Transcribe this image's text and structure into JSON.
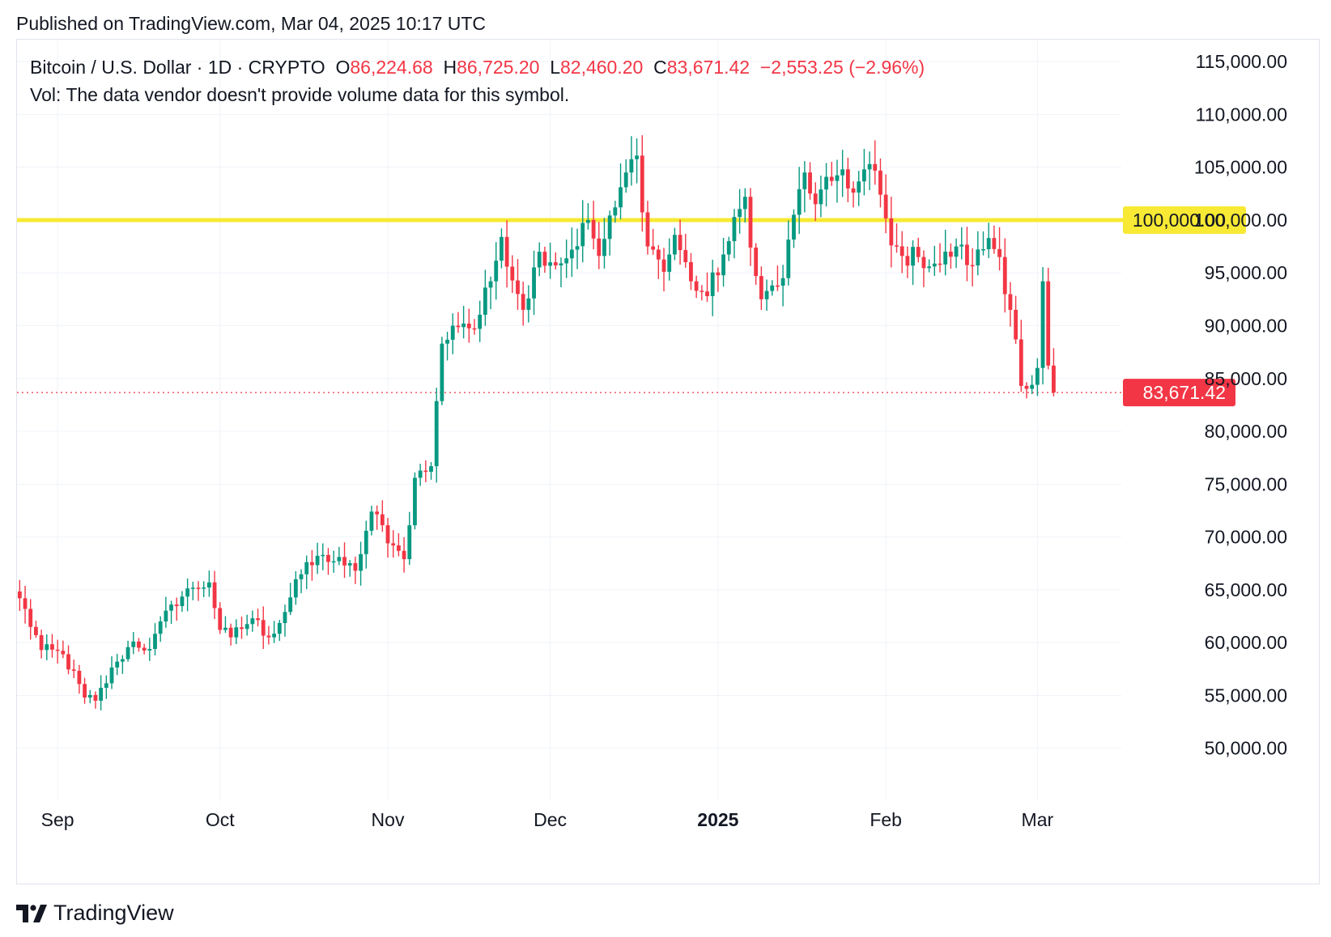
{
  "header": {
    "published": "Published on TradingView.com, Mar 04, 2025 10:17 UTC"
  },
  "legend": {
    "symbol": "Bitcoin / U.S. Dollar · 1D · CRYPTO",
    "o_label": "O",
    "o_value": "86,224.68",
    "h_label": "H",
    "h_value": "86,725.20",
    "l_label": "L",
    "l_value": "82,460.20",
    "c_label": "C",
    "c_value": "83,671.42",
    "change": "−2,553.25 (−2.96%)",
    "vol_text": "Vol: The data vendor doesn't provide volume data for this symbol."
  },
  "footer": {
    "brand": "TradingView"
  },
  "colors": {
    "up": "#089981",
    "down": "#f23645",
    "grid": "#f0f3fa",
    "level_line": "#f7e934",
    "last_price": "#f23645",
    "text": "#131722"
  },
  "chart_data": {
    "type": "candlestick",
    "title": "Bitcoin / U.S. Dollar · 1D · CRYPTO",
    "ylim": [
      45000,
      117000
    ],
    "y_ticks": [
      50000,
      55000,
      60000,
      65000,
      70000,
      75000,
      80000,
      85000,
      90000,
      95000,
      100000,
      105000,
      110000,
      115000
    ],
    "y_tick_labels": [
      "50,000.00",
      "55,000.00",
      "60,000.00",
      "65,000.00",
      "70,000.00",
      "75,000.00",
      "80,000.00",
      "85,000.00",
      "90,000.00",
      "95,000.00",
      "100,000.00",
      "105,000.00",
      "110,000.00",
      "115,000.00"
    ],
    "x_range": [
      "2024-08-25",
      "2025-03-17"
    ],
    "x_ticks": [
      {
        "date": "2024-09-01",
        "label": "Sep",
        "bold": false
      },
      {
        "date": "2024-10-01",
        "label": "Oct",
        "bold": false
      },
      {
        "date": "2024-11-01",
        "label": "Nov",
        "bold": false
      },
      {
        "date": "2024-12-01",
        "label": "Dec",
        "bold": false
      },
      {
        "date": "2025-01-01",
        "label": "2025",
        "bold": true
      },
      {
        "date": "2025-02-01",
        "label": "Feb",
        "bold": false
      },
      {
        "date": "2025-03-01",
        "label": "Mar",
        "bold": false
      }
    ],
    "horizontal_level": {
      "value": 100000,
      "label": "100,000.00"
    },
    "last_price": {
      "value": 83671.42,
      "label": "83,671.42"
    },
    "grid": true,
    "anchors": [
      {
        "date": "2024-08-25",
        "close": 64200
      },
      {
        "date": "2024-08-29",
        "close": 59300
      },
      {
        "date": "2024-09-02",
        "close": 58900
      },
      {
        "date": "2024-09-06",
        "close": 54800
      },
      {
        "date": "2024-09-08",
        "close": 54500
      },
      {
        "date": "2024-09-12",
        "close": 58200
      },
      {
        "date": "2024-09-15",
        "close": 60100
      },
      {
        "date": "2024-09-18",
        "close": 59400
      },
      {
        "date": "2024-09-22",
        "close": 63600
      },
      {
        "date": "2024-09-26",
        "close": 65200
      },
      {
        "date": "2024-09-29",
        "close": 65700
      },
      {
        "date": "2024-10-01",
        "close": 61200
      },
      {
        "date": "2024-10-03",
        "close": 60500
      },
      {
        "date": "2024-10-07",
        "close": 62300
      },
      {
        "date": "2024-10-10",
        "close": 60500
      },
      {
        "date": "2024-10-13",
        "close": 62900
      },
      {
        "date": "2024-10-15",
        "close": 66000
      },
      {
        "date": "2024-10-20",
        "close": 68300
      },
      {
        "date": "2024-10-24",
        "close": 67300
      },
      {
        "date": "2024-10-26",
        "close": 66800
      },
      {
        "date": "2024-10-29",
        "close": 72400
      },
      {
        "date": "2024-11-02",
        "close": 69200
      },
      {
        "date": "2024-11-04",
        "close": 67900
      },
      {
        "date": "2024-11-06",
        "close": 75600
      },
      {
        "date": "2024-11-09",
        "close": 76700
      },
      {
        "date": "2024-11-11",
        "close": 88300
      },
      {
        "date": "2024-11-13",
        "close": 90000
      },
      {
        "date": "2024-11-15",
        "close": 90200
      },
      {
        "date": "2024-11-17",
        "close": 89700
      },
      {
        "date": "2024-11-20",
        "close": 94200
      },
      {
        "date": "2024-11-22",
        "close": 98400
      },
      {
        "date": "2024-11-25",
        "close": 93000
      },
      {
        "date": "2024-11-26",
        "close": 91500
      },
      {
        "date": "2024-11-29",
        "close": 97000
      },
      {
        "date": "2024-12-03",
        "close": 95900
      },
      {
        "date": "2024-12-05",
        "close": 97200
      },
      {
        "date": "2024-12-08",
        "close": 100000
      },
      {
        "date": "2024-12-10",
        "close": 96600
      },
      {
        "date": "2024-12-13",
        "close": 101200
      },
      {
        "date": "2024-12-15",
        "close": 104500
      },
      {
        "date": "2024-12-17",
        "close": 106100
      },
      {
        "date": "2024-12-19",
        "close": 97500
      },
      {
        "date": "2024-12-20",
        "close": 97200
      },
      {
        "date": "2024-12-22",
        "close": 95100
      },
      {
        "date": "2024-12-24",
        "close": 98600
      },
      {
        "date": "2024-12-27",
        "close": 94200
      },
      {
        "date": "2024-12-30",
        "close": 92800
      },
      {
        "date": "2025-01-03",
        "close": 98000
      },
      {
        "date": "2025-01-06",
        "close": 102200
      },
      {
        "date": "2025-01-08",
        "close": 94700
      },
      {
        "date": "2025-01-09",
        "close": 92500
      },
      {
        "date": "2025-01-13",
        "close": 94500
      },
      {
        "date": "2025-01-15",
        "close": 100500
      },
      {
        "date": "2025-01-17",
        "close": 104500
      },
      {
        "date": "2025-01-19",
        "close": 101500
      },
      {
        "date": "2025-01-22",
        "close": 103700
      },
      {
        "date": "2025-01-24",
        "close": 104800
      },
      {
        "date": "2025-01-26",
        "close": 102600
      },
      {
        "date": "2025-01-29",
        "close": 105300
      },
      {
        "date": "2025-01-31",
        "close": 102400
      },
      {
        "date": "2025-02-02",
        "close": 97600
      },
      {
        "date": "2025-02-04",
        "close": 96600
      },
      {
        "date": "2025-02-07",
        "close": 96500
      },
      {
        "date": "2025-02-11",
        "close": 95800
      },
      {
        "date": "2025-02-14",
        "close": 97500
      },
      {
        "date": "2025-02-17",
        "close": 95700
      },
      {
        "date": "2025-02-20",
        "close": 98300
      },
      {
        "date": "2025-02-22",
        "close": 96500
      },
      {
        "date": "2025-02-24",
        "close": 91500
      },
      {
        "date": "2025-02-25",
        "close": 88700
      },
      {
        "date": "2025-02-26",
        "close": 84300
      },
      {
        "date": "2025-02-28",
        "close": 84400
      },
      {
        "date": "2025-03-01",
        "close": 86000
      },
      {
        "date": "2025-03-02",
        "close": 94200
      },
      {
        "date": "2025-03-03",
        "close": 86224.68
      },
      {
        "date": "2025-03-04",
        "close": 83671.42
      }
    ]
  }
}
